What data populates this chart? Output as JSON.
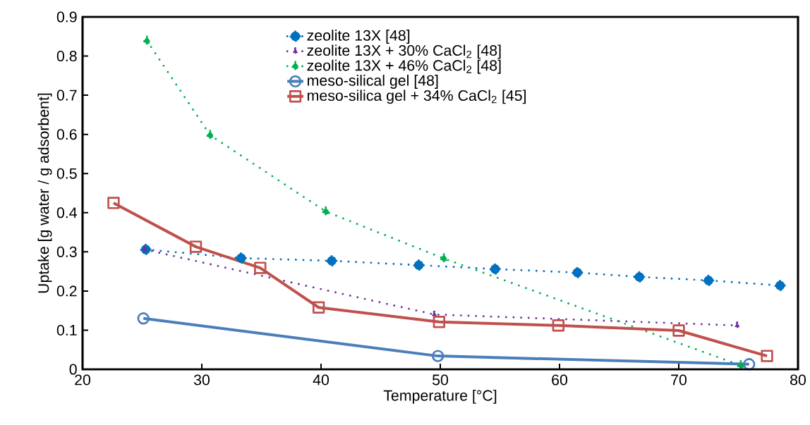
{
  "chart_data": {
    "type": "line",
    "xlabel": "Temperature [°C]",
    "ylabel": "Uptake [g water / g adsorbent]",
    "xlim": [
      20,
      80
    ],
    "ylim": [
      0,
      0.9
    ],
    "xticks": [
      20,
      30,
      40,
      50,
      60,
      70,
      80
    ],
    "yticks": [
      0,
      0.1,
      0.2,
      0.3,
      0.4,
      0.5,
      0.6,
      0.7,
      0.8,
      0.9
    ],
    "legend": "top",
    "series": [
      {
        "name": "zeolite 13X [48]",
        "color": "#0070c0",
        "marker": "circle",
        "line_style": "dotted",
        "x": [
          25.3,
          33.3,
          40.9,
          48.2,
          54.6,
          61.5,
          66.7,
          72.5,
          78.5
        ],
        "values": [
          0.306,
          0.284,
          0.277,
          0.266,
          0.256,
          0.247,
          0.236,
          0.227,
          0.214
        ]
      },
      {
        "name": "zeolite 13X + 30% CaCl$_{2}$ [48]",
        "color": "#7030a0",
        "marker": "triangle",
        "line_style": "dotted",
        "x": [
          25.2,
          49.5,
          74.9
        ],
        "values": [
          0.306,
          0.14,
          0.112
        ]
      },
      {
        "name": "zeolite 13X + 46% CaCl$_{2}$ [48]",
        "color": "#00b050",
        "marker": "diamond",
        "line_style": "dotted",
        "x": [
          25.4,
          30.7,
          40.4,
          50.3,
          75.2
        ],
        "values": [
          0.839,
          0.598,
          0.403,
          0.283,
          0.01
        ]
      },
      {
        "name": "meso-silical gel [48]",
        "color": "#4a7ebb",
        "marker": "circle",
        "line_style": "solid",
        "x": [
          25.1,
          49.8,
          75.9
        ],
        "values": [
          0.13,
          0.034,
          0.013
        ]
      },
      {
        "name": "meso-silica gel + 34% CaCl$_{2}$ [45]",
        "color": "#c0504d",
        "marker": "square",
        "line_style": "solid",
        "x": [
          22.6,
          29.5,
          34.9,
          39.8,
          49.9,
          59.9,
          70.0,
          77.4
        ],
        "values": [
          0.425,
          0.313,
          0.259,
          0.158,
          0.121,
          0.112,
          0.099,
          0.034
        ]
      }
    ]
  }
}
